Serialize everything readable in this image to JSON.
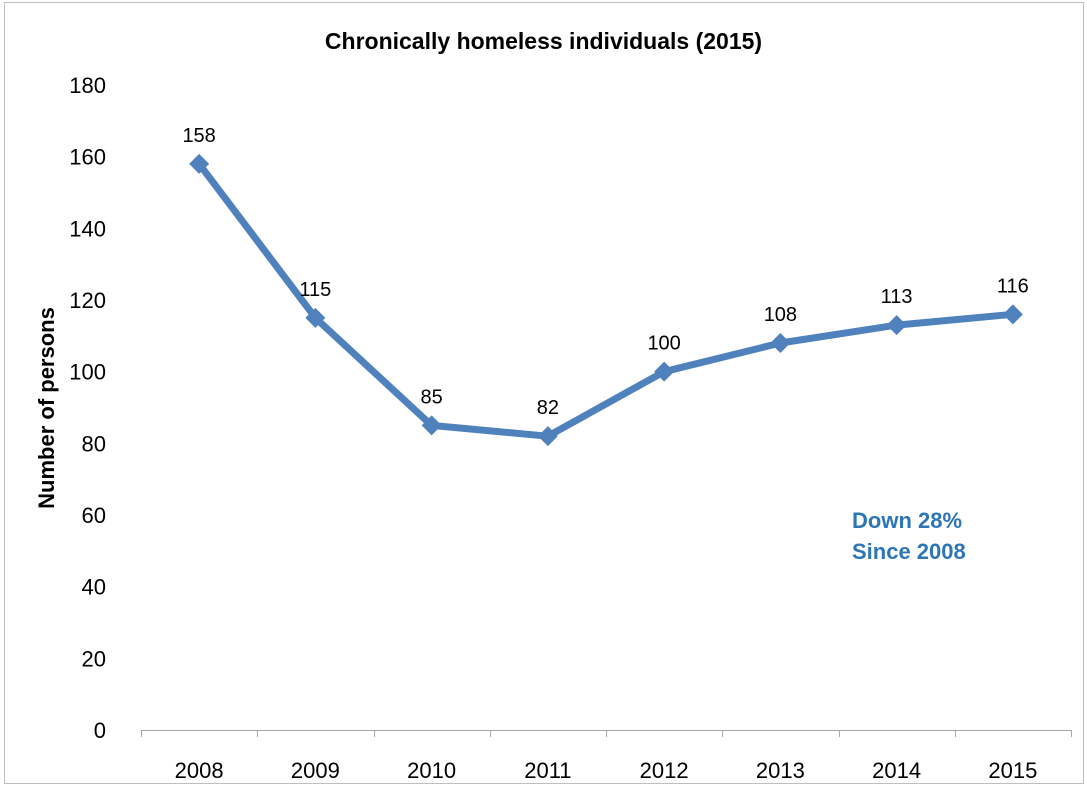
{
  "chart_data": {
    "type": "line",
    "title": "Chronically homeless individuals (2015)",
    "ylabel": "Number of persons",
    "xlabel": "",
    "categories": [
      "2008",
      "2009",
      "2010",
      "2011",
      "2012",
      "2013",
      "2014",
      "2015"
    ],
    "series": [
      {
        "values": [
          158,
          115,
          85,
          82,
          100,
          108,
          113,
          116
        ],
        "color": "#4f81bd",
        "marker": "diamond"
      }
    ],
    "data_labels": [
      "158",
      "115",
      "85",
      "82",
      "100",
      "108",
      "113",
      "116"
    ],
    "ylim": [
      0,
      180
    ],
    "y_ticks": [
      0,
      20,
      40,
      60,
      80,
      100,
      120,
      140,
      160,
      180
    ],
    "y_tick_labels": [
      "0",
      "20",
      "40",
      "60",
      "80",
      "100",
      "120",
      "140",
      "160",
      "180"
    ],
    "grid": false,
    "legend": "none",
    "annotation": {
      "lines": [
        "Down 28%",
        "Since 2008"
      ],
      "color": "#2e75b6"
    }
  }
}
